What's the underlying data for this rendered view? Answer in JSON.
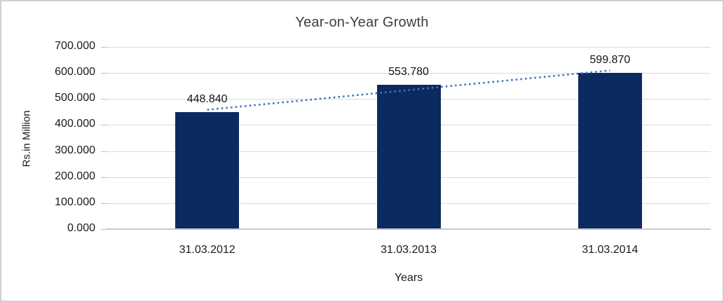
{
  "chart_data": {
    "type": "bar",
    "title": "Year-on-Year Growth",
    "xlabel": "Years",
    "ylabel": "Rs.in Million",
    "categories": [
      "31.03.2012",
      "31.03.2013",
      "31.03.2014"
    ],
    "values": [
      448.84,
      553.78,
      599.87
    ],
    "data_labels": [
      "448.840",
      "553.780",
      "599.870"
    ],
    "ylim": [
      0,
      700
    ],
    "ytick_step": 100,
    "ytick_labels": [
      "0.000",
      "100.000",
      "200.000",
      "300.000",
      "400.000",
      "500.000",
      "600.000",
      "700.000"
    ],
    "grid": true,
    "legend_position": "none",
    "bar_color": "#0b2a60",
    "trendline": {
      "style": "dotted",
      "fit": "linear",
      "color": "#4472c4"
    },
    "gridline_color": "#d9d9d9",
    "axis_line_color": "#c9c9c9",
    "title_color": "#3f3f3f",
    "text_color": "#1a1a1a",
    "frame_border_color": "#cfcfcf"
  }
}
